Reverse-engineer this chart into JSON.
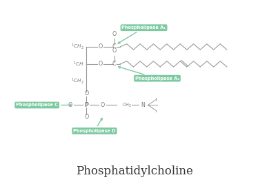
{
  "title": "Phosphatidylcholine",
  "background_color": "#ffffff",
  "line_color": "#999999",
  "label_bg_color": "#7dc9a0",
  "label_text_color": "#ffffff",
  "labels": {
    "PLA1": "Phospholipase A₁",
    "PLA2": "Phospholipase A₂",
    "PLC": "Phospholipase C",
    "PLD": "Phospholipase D"
  },
  "atom_color": "#777777",
  "title_fontsize": 12,
  "label_fontsize": 4.8,
  "lw": 0.8
}
